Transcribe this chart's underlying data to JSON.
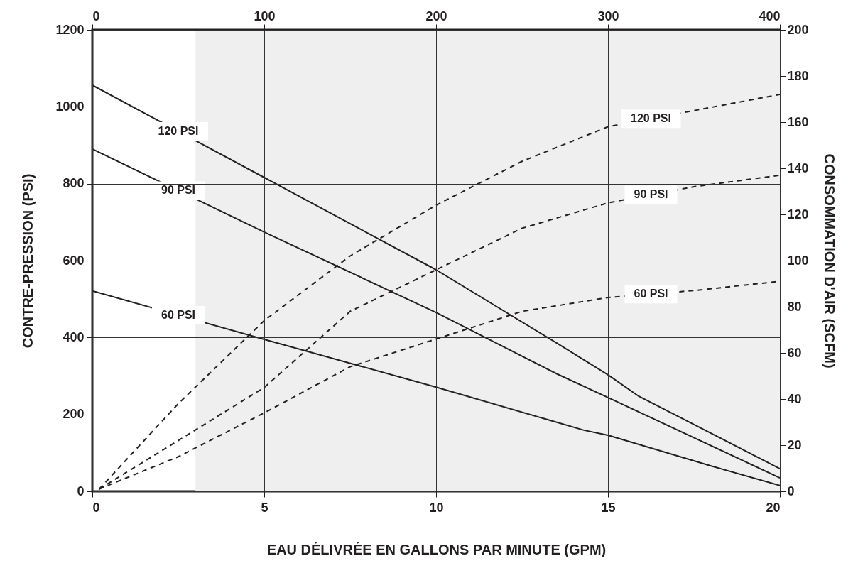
{
  "chart_data": {
    "type": "line",
    "xlabel": "EAU DÉLIVRÉE EN GALLONS PAR MINUTE (GPM)",
    "ylabel": "CONTRE-PRESSION (PSI)",
    "y2label": "CONSOMMATION D'AIR (SCFM)",
    "xlim": [
      0,
      20
    ],
    "xticks": [
      0,
      5,
      10,
      15,
      20
    ],
    "ylim": [
      0,
      1200
    ],
    "yticks": [
      0,
      200,
      400,
      600,
      800,
      1000,
      1200
    ],
    "y2lim": [
      0,
      200
    ],
    "y2ticks": [
      0,
      20,
      40,
      60,
      80,
      100,
      120,
      140,
      160,
      180,
      200
    ],
    "x2lim": [
      0,
      400
    ],
    "x2ticks": [
      0,
      100,
      200,
      300,
      400
    ],
    "grid": true,
    "line_style": "solid",
    "bands": [
      {
        "axis": "x",
        "from": 3,
        "to": 20,
        "color": "#efefef"
      }
    ],
    "series": [
      {
        "name": "120 PSI",
        "color": "#231f20",
        "x": [
          0,
          5,
          10,
          13.5,
          15,
          15.9,
          20
        ],
        "values": [
          1056,
          816,
          576,
          386,
          303,
          247,
          59
        ]
      },
      {
        "name": "90 PSI",
        "color": "#231f20",
        "x": [
          0,
          5,
          10,
          13.5,
          15,
          20
        ],
        "values": [
          890,
          674,
          465,
          306,
          244,
          35
        ]
      },
      {
        "name": "60 PSI",
        "color": "#231f20",
        "x": [
          0,
          5,
          10,
          14.3,
          15,
          18,
          20
        ],
        "values": [
          521,
          395,
          271,
          159,
          146,
          66,
          15
        ]
      },
      {
        "name": "120 PSI",
        "color": "#231f20",
        "axis": "y2",
        "line_style": "dashed",
        "x": [
          0.2,
          2.5,
          5,
          7.5,
          10,
          12.5,
          15,
          17.5,
          20
        ],
        "values": [
          1,
          38,
          74,
          102,
          124,
          143,
          158,
          165,
          172
        ]
      },
      {
        "name": "90 PSI",
        "color": "#231f20",
        "axis": "y2",
        "line_style": "dashed",
        "x": [
          0.2,
          2.5,
          5,
          7.5,
          10,
          12.5,
          15,
          17.5,
          20
        ],
        "values": [
          1,
          22,
          45,
          78,
          96,
          114,
          125,
          132,
          137
        ]
      },
      {
        "name": "60 PSI",
        "color": "#231f20",
        "axis": "y2",
        "line_style": "dashed",
        "x": [
          0.2,
          2.5,
          5,
          7.5,
          10,
          12.5,
          15,
          17.5,
          20
        ],
        "values": [
          1,
          15,
          34,
          54,
          66,
          78,
          84,
          87,
          91
        ]
      }
    ]
  }
}
